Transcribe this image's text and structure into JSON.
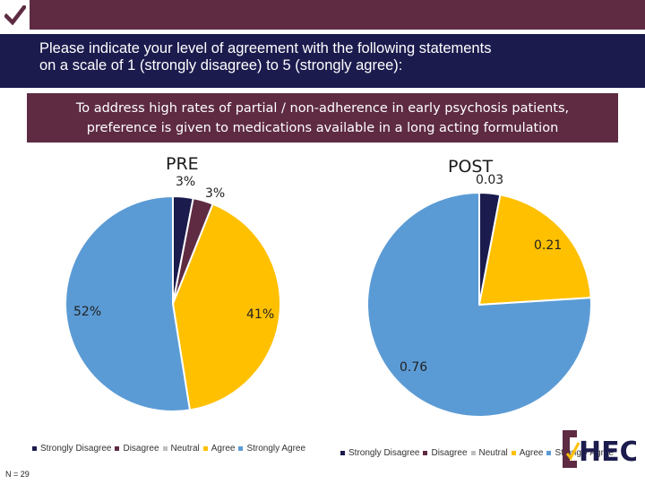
{
  "header": {
    "title_line1": "Please indicate your level of agreement with the following statements",
    "title_line2": "on a scale of 1 (strongly disagree) to 5 (strongly agree):"
  },
  "statement": {
    "line1": "To address high rates of partial / non-adherence in early psychosis patients,",
    "line2": "preference is given to medications available in a long acting formulation"
  },
  "colors": {
    "strongly_disagree": "#1c1b4e",
    "disagree": "#5e2b43",
    "neutral": "#bfbfbf",
    "agree": "#ffc000",
    "strongly_agree": "#5b9bd5"
  },
  "chart_data": [
    {
      "type": "pie",
      "title": "PRE",
      "categories": [
        "Strongly Disagree",
        "Disagree",
        "Neutral",
        "Agree",
        "Strongly Agree"
      ],
      "values": [
        0.03,
        0.03,
        0,
        0.41,
        0.52
      ],
      "data_labels": [
        "3%",
        "3%",
        "",
        "41%",
        "52%"
      ],
      "legend": [
        "Strongly Disagree",
        "Disagree",
        "Neutral",
        "Agree",
        "Strongly Agree"
      ]
    },
    {
      "type": "pie",
      "title": "POST",
      "categories": [
        "Strongly Disagree",
        "Disagree",
        "Neutral",
        "Agree",
        "Strongly Agree"
      ],
      "values": [
        0.03,
        0,
        0,
        0.21,
        0.76
      ],
      "data_labels": [
        "0.03",
        "",
        "",
        "0.21",
        "0.76"
      ],
      "legend": [
        "Strongly Disagree",
        "Disagree",
        "Neutral",
        "Agree",
        "Strongly Agree"
      ]
    }
  ],
  "footer": {
    "n_label": "N = 29"
  },
  "logo": {
    "text": "HECK"
  }
}
